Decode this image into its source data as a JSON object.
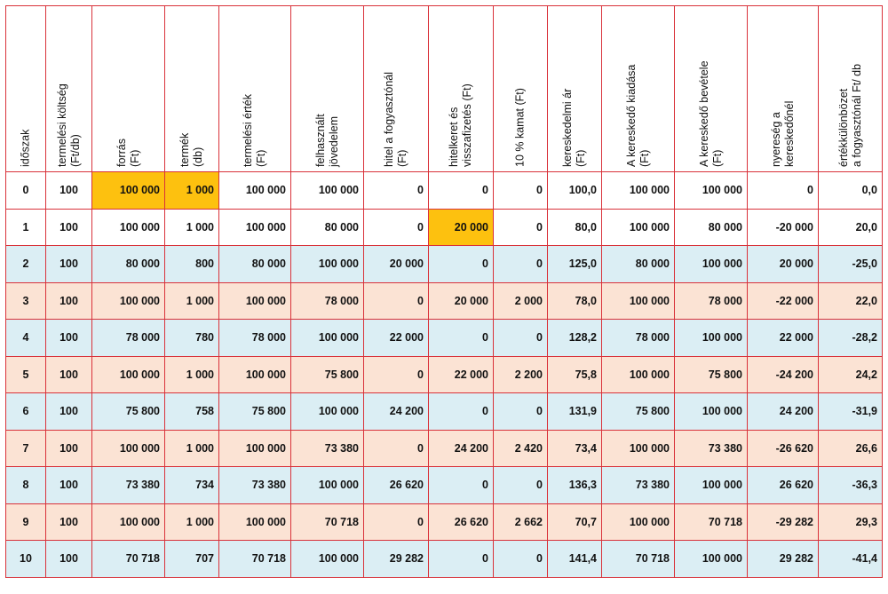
{
  "colors": {
    "border": "#d9323a",
    "highlight": "#fdc10f",
    "row_blue": "#dbeef4",
    "row_peach": "#fbe3d4"
  },
  "headers": [
    [
      "időszak",
      ""
    ],
    [
      "termelési költség",
      "(Ft/db)"
    ],
    [
      "forrás",
      "(Ft)"
    ],
    [
      "termék",
      "(db)"
    ],
    [
      "termelési érték",
      "(Ft)"
    ],
    [
      "felhasznált",
      "jövedelem"
    ],
    [
      "hitel a fogyasztónál",
      "(Ft)"
    ],
    [
      "hitelkeret és",
      "visszafizetés  (Ft)"
    ],
    [
      "10 % kamat (Ft)",
      ""
    ],
    [
      "kereskedelmi ár",
      "(Ft)"
    ],
    [
      "A kereskedő kiadása",
      "(Ft)"
    ],
    [
      "A kereskedő bevétele",
      "(Ft)"
    ],
    [
      "nyereség a",
      "kereskedőnél"
    ],
    [
      "értékkülönbözet",
      "a fogyasztónál  Ft/ db"
    ]
  ],
  "rows": [
    [
      "0",
      "100",
      "100 000",
      "1 000",
      "100 000",
      "100 000",
      "0",
      "0",
      "0",
      "100,0",
      "100 000",
      "100 000",
      "0",
      "0,0"
    ],
    [
      "1",
      "100",
      "100 000",
      "1 000",
      "100 000",
      "80 000",
      "0",
      "20 000",
      "0",
      "80,0",
      "100 000",
      "80 000",
      "-20 000",
      "20,0"
    ],
    [
      "2",
      "100",
      "80 000",
      "800",
      "80 000",
      "100 000",
      "20 000",
      "0",
      "0",
      "125,0",
      "80 000",
      "100 000",
      "20 000",
      "-25,0"
    ],
    [
      "3",
      "100",
      "100 000",
      "1 000",
      "100 000",
      "78 000",
      "0",
      "20 000",
      "2 000",
      "78,0",
      "100 000",
      "78 000",
      "-22 000",
      "22,0"
    ],
    [
      "4",
      "100",
      "78 000",
      "780",
      "78 000",
      "100 000",
      "22 000",
      "0",
      "0",
      "128,2",
      "78 000",
      "100 000",
      "22 000",
      "-28,2"
    ],
    [
      "5",
      "100",
      "100 000",
      "1 000",
      "100 000",
      "75 800",
      "0",
      "22 000",
      "2 200",
      "75,8",
      "100 000",
      "75 800",
      "-24 200",
      "24,2"
    ],
    [
      "6",
      "100",
      "75 800",
      "758",
      "75 800",
      "100 000",
      "24 200",
      "0",
      "0",
      "131,9",
      "75 800",
      "100 000",
      "24 200",
      "-31,9"
    ],
    [
      "7",
      "100",
      "100 000",
      "1 000",
      "100 000",
      "73 380",
      "0",
      "24 200",
      "2 420",
      "73,4",
      "100 000",
      "73 380",
      "-26 620",
      "26,6"
    ],
    [
      "8",
      "100",
      "73 380",
      "734",
      "73 380",
      "100 000",
      "26 620",
      "0",
      "0",
      "136,3",
      "73 380",
      "100 000",
      "26 620",
      "-36,3"
    ],
    [
      "9",
      "100",
      "100 000",
      "1 000",
      "100 000",
      "70 718",
      "0",
      "26 620",
      "2 662",
      "70,7",
      "100 000",
      "70 718",
      "-29 282",
      "29,3"
    ],
    [
      "10",
      "100",
      "70 718",
      "707",
      "70 718",
      "100 000",
      "29 282",
      "0",
      "0",
      "141,4",
      "70 718",
      "100 000",
      "29 282",
      "-41,4"
    ]
  ]
}
